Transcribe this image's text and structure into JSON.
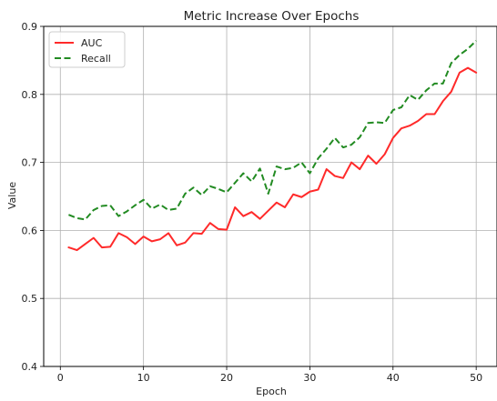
{
  "chart_data": {
    "type": "line",
    "title": "Metric Increase Over Epochs",
    "xlabel": "Epoch",
    "ylabel": "Value",
    "xlim": [
      -2,
      52.5
    ],
    "ylim": [
      0.4,
      0.9
    ],
    "xticks": [
      0,
      10,
      20,
      30,
      40,
      50
    ],
    "yticks": [
      0.4,
      0.5,
      0.6,
      0.7,
      0.8,
      0.9
    ],
    "grid": true,
    "legend_position": "top-left",
    "x": [
      1,
      2,
      3,
      4,
      5,
      6,
      7,
      8,
      9,
      10,
      11,
      12,
      13,
      14,
      15,
      16,
      17,
      18,
      19,
      20,
      21,
      22,
      23,
      24,
      25,
      26,
      27,
      28,
      29,
      30,
      31,
      32,
      33,
      34,
      35,
      36,
      37,
      38,
      39,
      40,
      41,
      42,
      43,
      44,
      45,
      46,
      47,
      48,
      49,
      50
    ],
    "series": [
      {
        "name": "AUC",
        "color": "#ff2a2a",
        "dash": "solid",
        "values": [
          0.575,
          0.571,
          0.58,
          0.589,
          0.575,
          0.576,
          0.596,
          0.59,
          0.58,
          0.591,
          0.584,
          0.587,
          0.596,
          0.578,
          0.582,
          0.596,
          0.595,
          0.611,
          0.602,
          0.601,
          0.634,
          0.621,
          0.627,
          0.617,
          0.629,
          0.641,
          0.634,
          0.653,
          0.649,
          0.657,
          0.66,
          0.69,
          0.68,
          0.677,
          0.7,
          0.69,
          0.71,
          0.698,
          0.712,
          0.736,
          0.75,
          0.754,
          0.761,
          0.771,
          0.771,
          0.79,
          0.804,
          0.832,
          0.839,
          0.832
        ]
      },
      {
        "name": "Recall",
        "color": "#228b22",
        "dash": "dashed",
        "values": [
          0.623,
          0.618,
          0.616,
          0.63,
          0.636,
          0.637,
          0.621,
          0.628,
          0.637,
          0.645,
          0.632,
          0.638,
          0.63,
          0.632,
          0.654,
          0.663,
          0.652,
          0.665,
          0.661,
          0.656,
          0.67,
          0.684,
          0.672,
          0.691,
          0.654,
          0.694,
          0.69,
          0.692,
          0.7,
          0.684,
          0.706,
          0.72,
          0.736,
          0.722,
          0.726,
          0.737,
          0.758,
          0.759,
          0.758,
          0.777,
          0.781,
          0.799,
          0.792,
          0.806,
          0.816,
          0.816,
          0.846,
          0.858,
          0.867,
          0.879
        ]
      }
    ]
  }
}
